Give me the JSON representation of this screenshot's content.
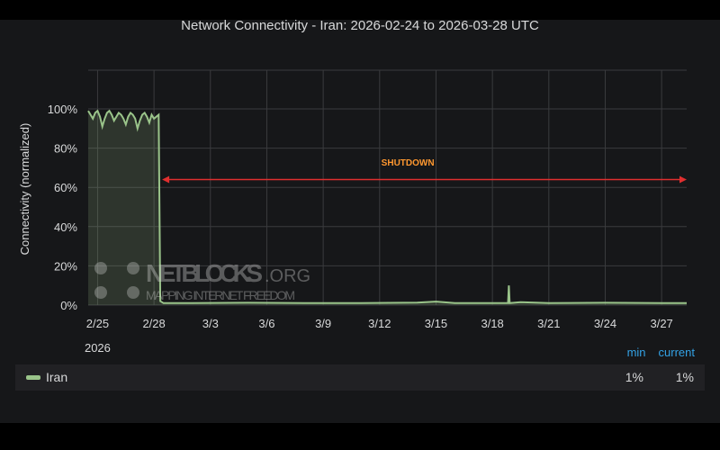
{
  "chart_data": {
    "type": "area",
    "title": "Network Connectivity - Iran: 2026-02-24 to 2026-03-28 UTC",
    "ylabel": "Connectivity (normalized)",
    "xlabel": "",
    "ylim": [
      0,
      100
    ],
    "xlim": [
      "2026-02-24T12:00",
      "2026-03-28T08:00"
    ],
    "yticks": [
      "0%",
      "20%",
      "40%",
      "60%",
      "80%",
      "100%"
    ],
    "xticks": [
      {
        "date": "2026-02-25",
        "label": "2/25",
        "sublabel": "2026"
      },
      {
        "date": "2026-02-28",
        "label": "2/28"
      },
      {
        "date": "2026-03-03",
        "label": "3/3"
      },
      {
        "date": "2026-03-06",
        "label": "3/6"
      },
      {
        "date": "2026-03-09",
        "label": "3/9"
      },
      {
        "date": "2026-03-12",
        "label": "3/12"
      },
      {
        "date": "2026-03-15",
        "label": "3/15"
      },
      {
        "date": "2026-03-18",
        "label": "3/18"
      },
      {
        "date": "2026-03-21",
        "label": "3/21"
      },
      {
        "date": "2026-03-24",
        "label": "3/24"
      },
      {
        "date": "2026-03-27",
        "label": "3/27"
      }
    ],
    "grid": true,
    "series": [
      {
        "name": "Iran",
        "color": "#9ac48a",
        "points": [
          [
            "2026-02-24T12:00",
            99
          ],
          [
            "2026-02-24T15:00",
            97
          ],
          [
            "2026-02-24T18:00",
            95
          ],
          [
            "2026-02-24T21:00",
            98
          ],
          [
            "2026-02-25T00:00",
            99
          ],
          [
            "2026-02-25T03:00",
            96
          ],
          [
            "2026-02-25T06:00",
            91
          ],
          [
            "2026-02-25T09:00",
            95
          ],
          [
            "2026-02-25T12:00",
            98
          ],
          [
            "2026-02-25T15:00",
            99
          ],
          [
            "2026-02-25T18:00",
            97
          ],
          [
            "2026-02-25T21:00",
            94
          ],
          [
            "2026-02-26T00:00",
            96
          ],
          [
            "2026-02-26T03:00",
            98
          ],
          [
            "2026-02-26T06:00",
            97
          ],
          [
            "2026-02-26T09:00",
            95
          ],
          [
            "2026-02-26T12:00",
            92
          ],
          [
            "2026-02-26T15:00",
            96
          ],
          [
            "2026-02-26T18:00",
            98
          ],
          [
            "2026-02-26T21:00",
            97
          ],
          [
            "2026-02-27T00:00",
            95
          ],
          [
            "2026-02-27T03:00",
            90
          ],
          [
            "2026-02-27T06:00",
            94
          ],
          [
            "2026-02-27T09:00",
            97
          ],
          [
            "2026-02-27T12:00",
            98
          ],
          [
            "2026-02-27T15:00",
            96
          ],
          [
            "2026-02-27T18:00",
            93
          ],
          [
            "2026-02-27T21:00",
            97
          ],
          [
            "2026-02-28T00:00",
            95
          ],
          [
            "2026-02-28T03:00",
            96
          ],
          [
            "2026-02-28T06:00",
            97
          ],
          [
            "2026-02-28T08:00",
            2
          ],
          [
            "2026-02-28T12:00",
            1
          ],
          [
            "2026-03-02T00:00",
            1
          ],
          [
            "2026-03-05T00:00",
            1.2
          ],
          [
            "2026-03-08T00:00",
            1
          ],
          [
            "2026-03-11T00:00",
            1
          ],
          [
            "2026-03-14T00:00",
            1.3
          ],
          [
            "2026-03-15T00:00",
            1.8
          ],
          [
            "2026-03-16T00:00",
            1
          ],
          [
            "2026-03-18T20:00",
            1
          ],
          [
            "2026-03-18T21:00",
            10
          ],
          [
            "2026-03-18T22:00",
            1
          ],
          [
            "2026-03-19T12:00",
            1.5
          ],
          [
            "2026-03-21T00:00",
            1
          ],
          [
            "2026-03-24T00:00",
            1.2
          ],
          [
            "2026-03-27T00:00",
            1
          ],
          [
            "2026-03-28T08:00",
            1
          ]
        ]
      }
    ],
    "annotations": [
      {
        "type": "arrow",
        "from": "2026-02-28T08:00",
        "to": "2026-03-28T08:00",
        "y": 64,
        "color": "#e02f2f"
      },
      {
        "type": "text",
        "text": "SHUTDOWN",
        "x": "2026-03-13T12:00",
        "y": 73,
        "color": "#ff9830"
      }
    ],
    "legend": {
      "placement": "bottom",
      "columns": [
        "min",
        "current"
      ],
      "rows": [
        {
          "name": "Iran",
          "min": "1%",
          "current": "1%"
        }
      ]
    }
  },
  "watermark": {
    "logo": "NETBLOCKS",
    "suffix": ".ORG",
    "tagline": "MAPPING INTERNET FREEDOM"
  }
}
